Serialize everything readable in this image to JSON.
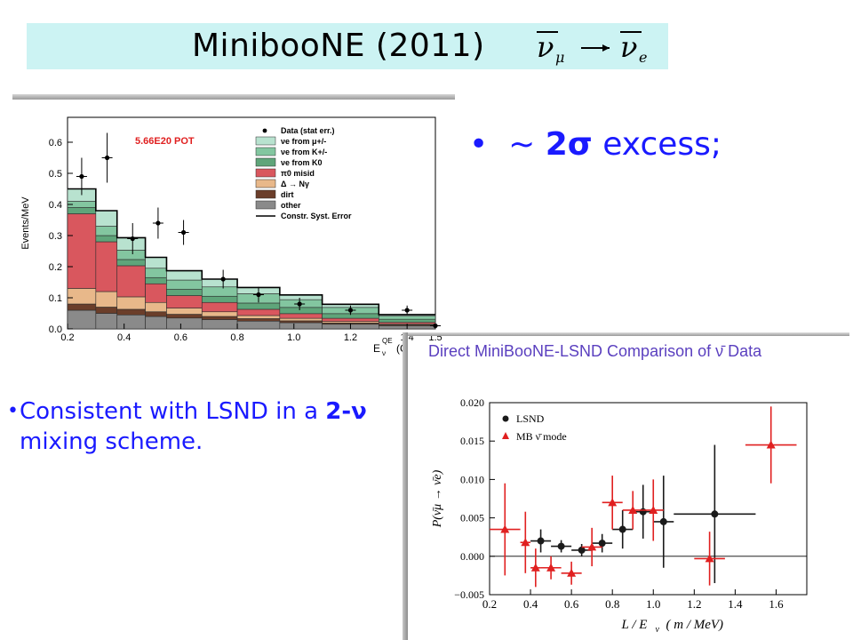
{
  "title": {
    "main": "MinibooNE (2011)",
    "formula_left": "ν",
    "formula_left_sub": "μ",
    "formula_right": "ν",
    "formula_right_sub": "e"
  },
  "bullets": {
    "excess_prefix": "~",
    "excess_bold": "2σ",
    "excess_rest": " excess;",
    "consistent_a": "Consistent with LSND in a ",
    "consistent_b": "2-ν",
    "consistent_c": " mixing scheme."
  },
  "chart_data": [
    {
      "type": "bar",
      "stacked": true,
      "annotation": "5.66E20 POT",
      "ylabel": "Events/MeV",
      "xlabel": "E",
      "xlabel_super": "QE",
      "xlabel_sub": "ν",
      "xlabel_unit": "(G",
      "xlim": [
        0.2,
        1.5
      ],
      "ylim": [
        0.0,
        0.68
      ],
      "xticks": [
        "0.2",
        "0.4",
        "0.6",
        "0.8",
        "1.0",
        "1.2",
        "1.4",
        "1.5"
      ],
      "yticks": [
        "0.0",
        "0.1",
        "0.2",
        "0.3",
        "0.4",
        "0.5",
        "0.6"
      ],
      "bin_edges": [
        0.2,
        0.3,
        0.375,
        0.475,
        0.55,
        0.675,
        0.8,
        0.95,
        1.1,
        1.3,
        1.5
      ],
      "series": [
        {
          "name": "other",
          "color": "#8a8a8a",
          "values": [
            0.06,
            0.05,
            0.045,
            0.04,
            0.035,
            0.03,
            0.025,
            0.02,
            0.015,
            0.01
          ]
        },
        {
          "name": "dirt",
          "color": "#6b3e2a",
          "values": [
            0.02,
            0.02,
            0.018,
            0.015,
            0.012,
            0.01,
            0.008,
            0.006,
            0.004,
            0.003
          ]
        },
        {
          "name": "Δ → Nγ",
          "color": "#e8b88a",
          "values": [
            0.05,
            0.05,
            0.04,
            0.03,
            0.02,
            0.015,
            0.01,
            0.008,
            0.005,
            0.003
          ]
        },
        {
          "name": "π⁰ misid",
          "color": "#d9575e",
          "values": [
            0.24,
            0.16,
            0.1,
            0.06,
            0.04,
            0.03,
            0.02,
            0.015,
            0.01,
            0.005
          ]
        },
        {
          "name": "νe from K⁰",
          "color": "#5fa57a",
          "values": [
            0.02,
            0.02,
            0.02,
            0.02,
            0.02,
            0.02,
            0.02,
            0.02,
            0.015,
            0.01
          ]
        },
        {
          "name": "νe from K+/-",
          "color": "#83c6a0",
          "values": [
            0.02,
            0.03,
            0.03,
            0.03,
            0.03,
            0.03,
            0.03,
            0.025,
            0.02,
            0.01
          ]
        },
        {
          "name": "νe from μ+/-",
          "color": "#b8e2cf",
          "values": [
            0.04,
            0.05,
            0.04,
            0.035,
            0.03,
            0.025,
            0.02,
            0.015,
            0.01,
            0.005
          ]
        }
      ],
      "data_points": {
        "name": "Data (stat err.)",
        "x": [
          0.25,
          0.34,
          0.43,
          0.52,
          0.61,
          0.75,
          0.875,
          1.02,
          1.2,
          1.4,
          1.5
        ],
        "y": [
          0.49,
          0.55,
          0.29,
          0.34,
          0.31,
          0.16,
          0.11,
          0.08,
          0.06,
          0.06,
          0.01
        ],
        "yerr": [
          0.06,
          0.08,
          0.05,
          0.05,
          0.04,
          0.03,
          0.025,
          0.02,
          0.015,
          0.015,
          0.005
        ]
      },
      "legend": [
        "Data (stat err.)",
        "νe from μ+/-",
        "νe from K+/-",
        "νe from K0",
        "π0 misid",
        "Δ → Nγ",
        "dirt",
        "other",
        "Constr. Syst. Error"
      ],
      "legend_placement": "top-right",
      "colors": {
        "annotation": "#e02020"
      }
    },
    {
      "type": "scatter",
      "title": "Direct MiniBooNE-LSND Comparison of ν̄ Data",
      "title_color": "#5a3fbf",
      "xlabel": "L / E",
      "xlabel_sub": "ν",
      "xlabel_unit": "( m / MeV)",
      "ylabel": "P(ν̄μ → ν̄e)",
      "xlim": [
        0.2,
        1.75
      ],
      "ylim": [
        -0.005,
        0.02
      ],
      "xticks": [
        "0.2",
        "0.4",
        "0.6",
        "0.8",
        "1.0",
        "1.2",
        "1.4",
        "1.6"
      ],
      "yticks": [
        "-0.005",
        "0.000",
        "0.005",
        "0.010",
        "0.015",
        "0.020"
      ],
      "legend_placement": "top-left",
      "series": [
        {
          "name": "LSND",
          "color": "#1a1a1a",
          "marker": "circle",
          "x": [
            0.45,
            0.55,
            0.65,
            0.75,
            0.85,
            0.95,
            1.05,
            1.3
          ],
          "y": [
            0.002,
            0.0013,
            0.0008,
            0.0017,
            0.0035,
            0.0058,
            0.0045,
            0.0055
          ],
          "xerr": [
            0.05,
            0.05,
            0.05,
            0.05,
            0.05,
            0.05,
            0.05,
            0.2
          ],
          "yerr": [
            0.0015,
            0.0008,
            0.0008,
            0.0012,
            0.0025,
            0.0035,
            0.006,
            0.009
          ]
        },
        {
          "name": "MB ν̄ mode",
          "color": "#e02020",
          "marker": "triangle",
          "x": [
            0.275,
            0.375,
            0.425,
            0.5,
            0.6,
            0.7,
            0.8,
            0.9,
            1.0,
            1.275,
            1.575
          ],
          "y": [
            0.0035,
            0.0018,
            -0.0015,
            -0.0015,
            -0.0022,
            0.0012,
            0.007,
            0.006,
            0.006,
            -0.0003,
            0.0145
          ],
          "xerr": [
            0.075,
            0.025,
            0.025,
            0.05,
            0.05,
            0.05,
            0.05,
            0.05,
            0.05,
            0.075,
            0.125
          ],
          "yerr": [
            0.006,
            0.004,
            0.0025,
            0.0015,
            0.0015,
            0.0025,
            0.0035,
            0.0025,
            0.004,
            0.0035,
            0.005
          ]
        }
      ],
      "reference_line_y": 0.0
    }
  ]
}
